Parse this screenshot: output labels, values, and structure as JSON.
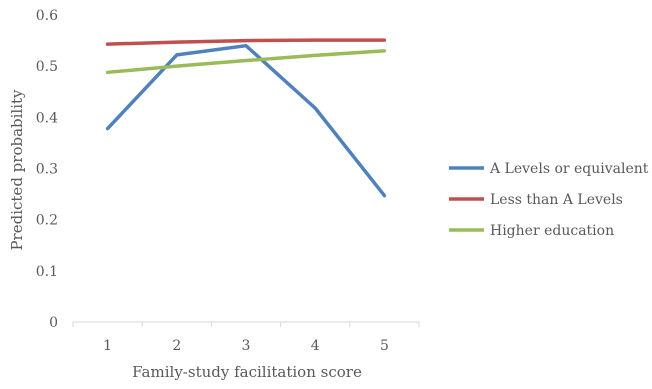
{
  "chart_data": {
    "type": "line",
    "title": "",
    "xlabel": "Family-study facilitation score",
    "ylabel": "Predicted probability",
    "categories": [
      "1",
      "2",
      "3",
      "4",
      "5"
    ],
    "ylim": [
      0,
      0.6
    ],
    "yticks": [
      "0",
      "0.1",
      "0.2",
      "0.3",
      "0.4",
      "0.5",
      "0.6"
    ],
    "grid": false,
    "legend_position": "right",
    "series": [
      {
        "name": "A Levels or equivalent",
        "color": "#4f81bd",
        "values": [
          0.378,
          0.522,
          0.54,
          0.418,
          0.247
        ]
      },
      {
        "name": "Less than A Levels",
        "color": "#c0504d",
        "values": [
          0.543,
          0.547,
          0.55,
          0.551,
          0.551
        ]
      },
      {
        "name": "Higher education",
        "color": "#9bbb59",
        "values": [
          0.488,
          0.5,
          0.511,
          0.521,
          0.53
        ]
      }
    ]
  }
}
